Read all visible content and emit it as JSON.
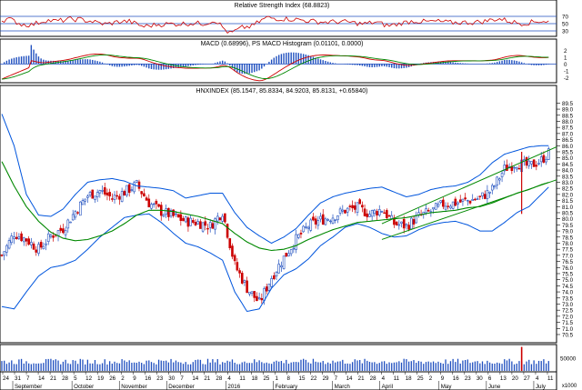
{
  "panels": {
    "rsi": {
      "title": "Relative Strength Index (68.8823)",
      "ticks": [
        "70",
        "50",
        "30"
      ],
      "levels": [
        70,
        50,
        30
      ],
      "ylim": [
        20,
        90
      ],
      "color": "#cc0000"
    },
    "macd": {
      "title": "MACD (0.68996), PS MACD Histogram (0.01101, 0.0000)",
      "ticks": [
        "2",
        "1",
        "0",
        "-1",
        "-2"
      ],
      "ylim": [
        -2.6,
        2.3
      ],
      "macd_color": "#cc0000",
      "signal_color": "#008800",
      "hist_color": "#1f4fbf"
    },
    "price": {
      "title": "HNXINDEX (85.1547, 85.8334, 84.9203, 85.8131, +0.65840)",
      "ticks": [
        "89.5",
        "89.0",
        "88.5",
        "88.0",
        "87.5",
        "87.0",
        "86.5",
        "86.0",
        "85.5",
        "85.0",
        "84.5",
        "84.0",
        "83.5",
        "83.0",
        "82.5",
        "82.0",
        "81.5",
        "81.0",
        "80.5",
        "80.0",
        "79.5",
        "79.0",
        "78.5",
        "78.0",
        "77.5",
        "77.0",
        "76.5",
        "76.0",
        "75.5",
        "75.0",
        "74.5",
        "74.0",
        "73.5",
        "73.0",
        "72.5",
        "72.0",
        "71.5",
        "71.0",
        "70.5"
      ],
      "ylim": [
        70.2,
        89.9
      ],
      "up_color": "#1f4fbf",
      "down_color": "#cc0000",
      "band_color": "#0055dd",
      "ma_color": "#008800"
    },
    "volume": {
      "ticks": [
        "50000"
      ],
      "unit": "x1000",
      "ylim": [
        0,
        95000
      ],
      "color": "#1f4fbf",
      "spike_color": "#cc0000"
    }
  },
  "x_axis": {
    "day_labels": [
      "24",
      "31",
      "7",
      "14",
      "21",
      "28",
      "5",
      "12",
      "19",
      "26",
      "2",
      "9",
      "16",
      "23",
      "30",
      "7",
      "14",
      "21",
      "28",
      "4",
      "11",
      "18",
      "25",
      "1",
      "8",
      "15",
      "22",
      "29",
      "7",
      "14",
      "21",
      "28",
      "4",
      "11",
      "18",
      "25",
      "2",
      "9",
      "16",
      "23",
      "30",
      "6",
      "13",
      "20",
      "27",
      "4",
      "11"
    ],
    "month_labels": [
      "September",
      "October",
      "November",
      "December",
      "2016",
      "February",
      "March",
      "April",
      "May",
      "June",
      "July"
    ],
    "month_label_index": [
      1,
      6,
      10,
      14,
      19,
      23,
      28,
      32,
      37,
      41,
      45
    ]
  },
  "chart_data": {
    "type": "candlestick",
    "title": "HNXINDEX (85.1547, 85.8334, 84.9203, 85.8131, +0.65840)",
    "x_range": [
      "24 Aug 2015",
      "4 Jul 2016"
    ],
    "ylim": [
      70.2,
      89.9
    ],
    "close_by_week": {
      "x": [
        "24 Aug",
        "31 Aug",
        "7 Sep",
        "14 Sep",
        "21 Sep",
        "28 Sep",
        "5 Oct",
        "12 Oct",
        "19 Oct",
        "26 Oct",
        "2 Nov",
        "9 Nov",
        "16 Nov",
        "23 Nov",
        "30 Nov",
        "7 Dec",
        "14 Dec",
        "21 Dec",
        "28 Dec",
        "4 Jan",
        "11 Jan",
        "18 Jan",
        "25 Jan",
        "1 Feb",
        "8 Feb",
        "15 Feb",
        "22 Feb",
        "29 Feb",
        "7 Mar",
        "14 Mar",
        "21 Mar",
        "28 Mar",
        "4 Apr",
        "11 Apr",
        "18 Apr",
        "25 Apr",
        "2 May",
        "9 May",
        "16 May",
        "23 May",
        "30 May",
        "6 Jun",
        "13 Jun",
        "20 Jun",
        "27 Jun",
        "4 Jul"
      ],
      "values": [
        77.0,
        78.8,
        78.3,
        77.5,
        78.6,
        79.2,
        80.6,
        81.9,
        82.3,
        81.7,
        82.2,
        82.8,
        81.3,
        80.6,
        80.2,
        79.8,
        79.7,
        79.4,
        80.6,
        76.2,
        74.3,
        73.1,
        75.2,
        76.8,
        78.3,
        79.4,
        79.9,
        80.2,
        80.7,
        80.9,
        80.4,
        80.8,
        79.6,
        79.4,
        80.2,
        80.6,
        81.2,
        81.3,
        81.5,
        81.7,
        82.4,
        84.1,
        84.6,
        84.3,
        84.8,
        85.8
      ]
    },
    "bollinger_upper": [
      88.6,
      86.0,
      82.0,
      80.3,
      80.2,
      80.8,
      82.0,
      83.0,
      83.2,
      83.3,
      83.1,
      82.7,
      82.6,
      82.5,
      82.3,
      81.7,
      81.9,
      82.1,
      82.1,
      80.5,
      79.3,
      78.6,
      78.0,
      78.5,
      79.2,
      80.3,
      81.3,
      81.8,
      82.1,
      82.3,
      82.5,
      82.6,
      82.2,
      81.8,
      82.0,
      82.4,
      82.6,
      82.7,
      83.0,
      83.6,
      84.6,
      85.3,
      85.6,
      85.9,
      86.0,
      86.0
    ],
    "bollinger_lower": [
      72.8,
      72.6,
      74.0,
      75.3,
      76.0,
      76.2,
      76.6,
      77.5,
      78.5,
      79.3,
      80.1,
      80.3,
      80.4,
      79.7,
      78.8,
      78.0,
      77.7,
      77.2,
      76.6,
      74.0,
      72.4,
      72.6,
      74.3,
      75.4,
      75.9,
      76.7,
      77.8,
      78.5,
      79.3,
      79.6,
      79.3,
      78.8,
      78.5,
      78.6,
      79.1,
      79.5,
      79.7,
      79.8,
      79.5,
      79.0,
      79.0,
      79.7,
      80.5,
      81.0,
      82.0,
      83.0
    ],
    "ma_long": [
      84.7,
      82.7,
      81.0,
      79.8,
      78.9,
      78.4,
      78.2,
      78.3,
      78.6,
      79.0,
      79.6,
      80.3,
      80.7,
      80.7,
      80.6,
      80.4,
      80.2,
      79.9,
      79.6,
      78.8,
      78.1,
      77.6,
      77.4,
      77.5,
      77.8,
      78.3,
      78.7,
      79.1,
      79.4,
      79.7,
      79.8,
      79.9,
      80.0,
      80.1,
      80.3,
      80.5,
      80.6,
      80.7,
      80.9,
      81.0,
      81.3,
      81.7,
      82.1,
      82.4,
      82.8,
      83.1
    ],
    "trend_upper": [
      [
        79.6,
        80.8
      ],
      [
        45.5,
        85.9
      ]
    ],
    "trend_lower": [
      [
        79.5,
        78.3
      ],
      [
        45.5,
        83.2
      ]
    ],
    "volume_spike_week": "20 Jun"
  }
}
